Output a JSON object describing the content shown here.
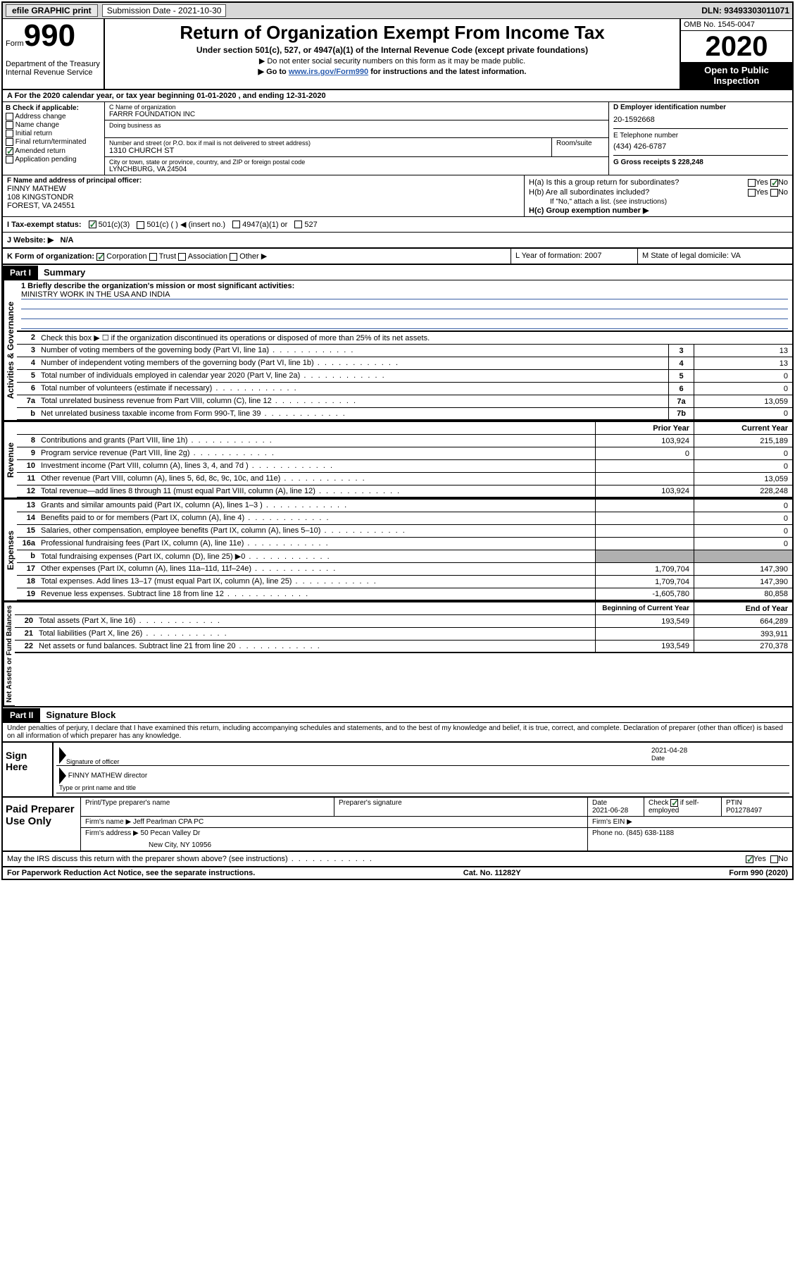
{
  "topbar": {
    "efile": "efile GRAPHIC print",
    "submission_label": "Submission Date - 2021-10-30",
    "dln": "DLN: 93493303011071"
  },
  "header": {
    "form_prefix": "Form",
    "form_number": "990",
    "dept": "Department of the Treasury\nInternal Revenue Service",
    "title": "Return of Organization Exempt From Income Tax",
    "subtitle": "Under section 501(c), 527, or 4947(a)(1) of the Internal Revenue Code (except private foundations)",
    "notice1": "▶ Do not enter social security numbers on this form as it may be made public.",
    "notice2_pre": "▶ Go to ",
    "notice2_link": "www.irs.gov/Form990",
    "notice2_post": " for instructions and the latest information.",
    "omb": "OMB No. 1545-0047",
    "year": "2020",
    "inspection": "Open to Public Inspection"
  },
  "lineA": "A For the 2020 calendar year, or tax year beginning 01-01-2020    , and ending 12-31-2020",
  "sectionB": {
    "label": "B Check if applicable:",
    "opts": [
      "Address change",
      "Name change",
      "Initial return",
      "Final return/terminated",
      "Amended return",
      "Application pending"
    ],
    "checked_idx": 4
  },
  "sectionC": {
    "name_label": "C Name of organization",
    "name": "FARRR FOUNDATION INC",
    "dba_label": "Doing business as",
    "addr_label": "Number and street (or P.O. box if mail is not delivered to street address)",
    "addr": "1310 CHURCH ST",
    "suite_label": "Room/suite",
    "city_label": "City or town, state or province, country, and ZIP or foreign postal code",
    "city": "LYNCHBURG, VA  24504"
  },
  "sectionD": {
    "ein_label": "D Employer identification number",
    "ein": "20-1592668",
    "phone_label": "E Telephone number",
    "phone": "(434) 426-6787",
    "gross_label": "G Gross receipts $ 228,248"
  },
  "sectionF": {
    "label": "F  Name and address of principal officer:",
    "name": "FINNY MATHEW",
    "addr1": "108 KINGSTONDR",
    "addr2": "FOREST, VA  24551"
  },
  "sectionH": {
    "ha": "H(a)  Is this a group return for subordinates?",
    "ha_ans": "No",
    "hb": "H(b)  Are all subordinates included?",
    "hb_note": "If \"No,\" attach a list. (see instructions)",
    "hc": "H(c)  Group exemption number ▶"
  },
  "taxStatus": {
    "label": "I   Tax-exempt status:",
    "opt1": "501(c)(3)",
    "opt2": "501(c) (  ) ◀ (insert no.)",
    "opt3": "4947(a)(1) or",
    "opt4": "527"
  },
  "website": {
    "label": "J   Website: ▶",
    "value": "N/A"
  },
  "klm": {
    "k_label": "K Form of organization:",
    "k_opts": [
      "Corporation",
      "Trust",
      "Association",
      "Other ▶"
    ],
    "l": "L Year of formation: 2007",
    "m": "M State of legal domicile: VA"
  },
  "part1": {
    "tab": "Part I",
    "title": "Summary"
  },
  "governance": {
    "q1_label": "1  Briefly describe the organization's mission or most significant activities:",
    "q1_value": "MINISTRY WORK IN THE USA AND INDIA",
    "q2": "Check this box ▶ ☐  if the organization discontinued its operations or disposed of more than 25% of its net assets.",
    "rows": [
      {
        "n": "3",
        "d": "Number of voting members of the governing body (Part VI, line 1a)",
        "b": "3",
        "v": "13"
      },
      {
        "n": "4",
        "d": "Number of independent voting members of the governing body (Part VI, line 1b)",
        "b": "4",
        "v": "13"
      },
      {
        "n": "5",
        "d": "Total number of individuals employed in calendar year 2020 (Part V, line 2a)",
        "b": "5",
        "v": "0"
      },
      {
        "n": "6",
        "d": "Total number of volunteers (estimate if necessary)",
        "b": "6",
        "v": "0"
      },
      {
        "n": "7a",
        "d": "Total unrelated business revenue from Part VIII, column (C), line 12",
        "b": "7a",
        "v": "13,059"
      },
      {
        "n": "b",
        "d": "Net unrelated business taxable income from Form 990-T, line 39",
        "b": "7b",
        "v": "0"
      }
    ]
  },
  "twocol_header": {
    "prior": "Prior Year",
    "current": "Current Year"
  },
  "revenue": [
    {
      "n": "8",
      "d": "Contributions and grants (Part VIII, line 1h)",
      "p": "103,924",
      "c": "215,189"
    },
    {
      "n": "9",
      "d": "Program service revenue (Part VIII, line 2g)",
      "p": "0",
      "c": "0"
    },
    {
      "n": "10",
      "d": "Investment income (Part VIII, column (A), lines 3, 4, and 7d )",
      "p": "",
      "c": "0"
    },
    {
      "n": "11",
      "d": "Other revenue (Part VIII, column (A), lines 5, 6d, 8c, 9c, 10c, and 11e)",
      "p": "",
      "c": "13,059"
    },
    {
      "n": "12",
      "d": "Total revenue—add lines 8 through 11 (must equal Part VIII, column (A), line 12)",
      "p": "103,924",
      "c": "228,248"
    }
  ],
  "expenses": [
    {
      "n": "13",
      "d": "Grants and similar amounts paid (Part IX, column (A), lines 1–3 )",
      "p": "",
      "c": "0"
    },
    {
      "n": "14",
      "d": "Benefits paid to or for members (Part IX, column (A), line 4)",
      "p": "",
      "c": "0"
    },
    {
      "n": "15",
      "d": "Salaries, other compensation, employee benefits (Part IX, column (A), lines 5–10)",
      "p": "",
      "c": "0"
    },
    {
      "n": "16a",
      "d": "Professional fundraising fees (Part IX, column (A), line 11e)",
      "p": "",
      "c": "0"
    },
    {
      "n": "b",
      "d": "Total fundraising expenses (Part IX, column (D), line 25) ▶0",
      "p": "shaded",
      "c": "shaded"
    },
    {
      "n": "17",
      "d": "Other expenses (Part IX, column (A), lines 11a–11d, 11f–24e)",
      "p": "1,709,704",
      "c": "147,390"
    },
    {
      "n": "18",
      "d": "Total expenses. Add lines 13–17 (must equal Part IX, column (A), line 25)",
      "p": "1,709,704",
      "c": "147,390"
    },
    {
      "n": "19",
      "d": "Revenue less expenses. Subtract line 18 from line 12",
      "p": "-1,605,780",
      "c": "80,858"
    }
  ],
  "netassets_header": {
    "begin": "Beginning of Current Year",
    "end": "End of Year"
  },
  "netassets": [
    {
      "n": "20",
      "d": "Total assets (Part X, line 16)",
      "p": "193,549",
      "c": "664,289"
    },
    {
      "n": "21",
      "d": "Total liabilities (Part X, line 26)",
      "p": "",
      "c": "393,911"
    },
    {
      "n": "22",
      "d": "Net assets or fund balances. Subtract line 21 from line 20",
      "p": "193,549",
      "c": "270,378"
    }
  ],
  "part2": {
    "tab": "Part II",
    "title": "Signature Block"
  },
  "declaration": "Under penalties of perjury, I declare that I have examined this return, including accompanying schedules and statements, and to the best of my knowledge and belief, it is true, correct, and complete. Declaration of preparer (other than officer) is based on all information of which preparer has any knowledge.",
  "sign": {
    "label": "Sign Here",
    "sig_label": "Signature of officer",
    "date": "2021-04-28",
    "date_label": "Date",
    "name": "FINNY MATHEW director",
    "name_label": "Type or print name and title"
  },
  "preparer": {
    "label": "Paid Preparer Use Only",
    "print_label": "Print/Type preparer's name",
    "sig_label": "Preparer's signature",
    "date_label": "Date",
    "date": "2021-06-28",
    "check_label": "Check ☑ if self-employed",
    "ptin_label": "PTIN",
    "ptin": "P01278497",
    "firm_name_label": "Firm's name    ▶",
    "firm_name": "Jeff Pearlman CPA PC",
    "firm_ein_label": "Firm's EIN ▶",
    "firm_addr_label": "Firm's address ▶",
    "firm_addr1": "50 Pecan Valley Dr",
    "firm_addr2": "New City, NY 10956",
    "phone_label": "Phone no. (845) 638-1188"
  },
  "footer": {
    "discuss": "May the IRS discuss this return with the preparer shown above? (see instructions)",
    "paperwork": "For Paperwork Reduction Act Notice, see the separate instructions.",
    "cat": "Cat. No. 11282Y",
    "form": "Form 990 (2020)"
  },
  "vert_labels": {
    "gov": "Activities & Governance",
    "rev": "Revenue",
    "exp": "Expenses",
    "net": "Net Assets or Fund Balances"
  }
}
